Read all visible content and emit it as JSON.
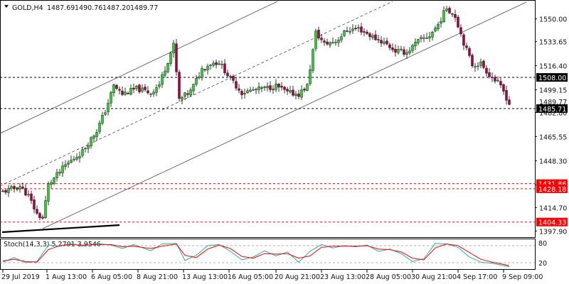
{
  "header": {
    "symbol": "GOLD,H4",
    "open": "1487.69",
    "high": "1490.76",
    "low": "1487.20",
    "close": "1489.77"
  },
  "stoch": {
    "label": "Stoch(14,3,3) 5.2701 3.9546",
    "levels": [
      "80",
      "20"
    ]
  },
  "colors": {
    "bull": "#32cd32",
    "bear": "#b0003a",
    "wick": "#000000",
    "channel": "#4a4a58",
    "hline_black": "#000000",
    "hline_red": "#ff0000",
    "stoch_main": "#20b2aa",
    "stoch_signal": "#ff0000"
  },
  "chart_data": {
    "type": "candlestick",
    "y_axis": {
      "range": [
        1393,
        1563
      ],
      "ticks": [
        "1550.00",
        "1533.65",
        "1516.40",
        "1499.15",
        "1482.80",
        "1465.55",
        "1448.30",
        "1431.05",
        "1414.70",
        "1397.90"
      ]
    },
    "x_axis": {
      "ticks": [
        "29 Jul 2019",
        "1 Aug 13:00",
        "6 Aug 05:00",
        "8 Aug 21:00",
        "13 Aug 13:00",
        "16 Aug 05:00",
        "20 Aug 21:00",
        "23 Aug 13:00",
        "28 Aug 05:00",
        "30 Aug 21:00",
        "4 Sep 17:00",
        "9 Sep 09:00"
      ]
    },
    "price_lines": [
      {
        "label": "1508.00",
        "value": 1508.0,
        "color": "black",
        "style": "dashed"
      },
      {
        "label": "1485.71",
        "value": 1485.71,
        "color": "black",
        "style": "dashed"
      },
      {
        "label": "1431.86",
        "value": 1431.86,
        "color": "red",
        "style": "dashed"
      },
      {
        "label": "1428.18",
        "value": 1428.18,
        "color": "red",
        "style": "dashed"
      },
      {
        "label": "1404.33",
        "value": 1404.33,
        "color": "red",
        "style": "dashed"
      }
    ],
    "current_price": {
      "label": "1489.77",
      "value": 1489.77
    },
    "keypoints": [
      [
        0,
        1426
      ],
      [
        6,
        1430
      ],
      [
        9,
        1423
      ],
      [
        12,
        1410
      ],
      [
        14,
        1407
      ],
      [
        16,
        1431
      ],
      [
        22,
        1445
      ],
      [
        28,
        1455
      ],
      [
        33,
        1470
      ],
      [
        36,
        1484
      ],
      [
        39,
        1502
      ],
      [
        42,
        1496
      ],
      [
        47,
        1500
      ],
      [
        52,
        1497
      ],
      [
        55,
        1503
      ],
      [
        58,
        1520
      ],
      [
        60,
        1531
      ],
      [
        62,
        1492
      ],
      [
        66,
        1498
      ],
      [
        70,
        1514
      ],
      [
        73,
        1518
      ],
      [
        76,
        1519
      ],
      [
        80,
        1507
      ],
      [
        84,
        1497
      ],
      [
        88,
        1499
      ],
      [
        92,
        1500
      ],
      [
        96,
        1502
      ],
      [
        100,
        1497
      ],
      [
        104,
        1496
      ],
      [
        107,
        1502
      ],
      [
        110,
        1540
      ],
      [
        113,
        1532
      ],
      [
        117,
        1534
      ],
      [
        121,
        1542
      ],
      [
        125,
        1543
      ],
      [
        130,
        1537
      ],
      [
        134,
        1533
      ],
      [
        138,
        1527
      ],
      [
        142,
        1526
      ],
      [
        146,
        1534
      ],
      [
        150,
        1538
      ],
      [
        153,
        1546
      ],
      [
        156,
        1558
      ],
      [
        159,
        1552
      ],
      [
        162,
        1533
      ],
      [
        165,
        1517
      ],
      [
        168,
        1518
      ],
      [
        171,
        1510
      ],
      [
        174,
        1504
      ],
      [
        176,
        1498
      ],
      [
        178,
        1489
      ]
    ],
    "stoch_main": [
      [
        0,
        22
      ],
      [
        4,
        38
      ],
      [
        8,
        20
      ],
      [
        12,
        24
      ],
      [
        16,
        82
      ],
      [
        20,
        78
      ],
      [
        24,
        88
      ],
      [
        28,
        78
      ],
      [
        33,
        88
      ],
      [
        38,
        82
      ],
      [
        42,
        70
      ],
      [
        46,
        84
      ],
      [
        52,
        62
      ],
      [
        56,
        86
      ],
      [
        61,
        88
      ],
      [
        64,
        28
      ],
      [
        68,
        46
      ],
      [
        72,
        80
      ],
      [
        76,
        84
      ],
      [
        80,
        60
      ],
      [
        84,
        30
      ],
      [
        88,
        40
      ],
      [
        92,
        62
      ],
      [
        96,
        44
      ],
      [
        100,
        58
      ],
      [
        104,
        22
      ],
      [
        108,
        60
      ],
      [
        112,
        84
      ],
      [
        116,
        72
      ],
      [
        120,
        80
      ],
      [
        124,
        76
      ],
      [
        128,
        82
      ],
      [
        132,
        60
      ],
      [
        136,
        68
      ],
      [
        140,
        52
      ],
      [
        144,
        24
      ],
      [
        148,
        34
      ],
      [
        152,
        88
      ],
      [
        156,
        86
      ],
      [
        160,
        74
      ],
      [
        164,
        40
      ],
      [
        168,
        22
      ],
      [
        172,
        18
      ],
      [
        176,
        10
      ],
      [
        178,
        6
      ]
    ],
    "stoch_signal": [
      [
        0,
        26
      ],
      [
        4,
        32
      ],
      [
        8,
        24
      ],
      [
        12,
        22
      ],
      [
        16,
        66
      ],
      [
        20,
        80
      ],
      [
        24,
        84
      ],
      [
        28,
        82
      ],
      [
        33,
        84
      ],
      [
        38,
        84
      ],
      [
        42,
        76
      ],
      [
        46,
        78
      ],
      [
        52,
        70
      ],
      [
        56,
        78
      ],
      [
        61,
        86
      ],
      [
        64,
        46
      ],
      [
        68,
        38
      ],
      [
        72,
        68
      ],
      [
        76,
        82
      ],
      [
        80,
        70
      ],
      [
        84,
        42
      ],
      [
        88,
        36
      ],
      [
        92,
        52
      ],
      [
        96,
        50
      ],
      [
        100,
        52
      ],
      [
        104,
        36
      ],
      [
        108,
        44
      ],
      [
        112,
        74
      ],
      [
        116,
        78
      ],
      [
        120,
        78
      ],
      [
        124,
        78
      ],
      [
        128,
        80
      ],
      [
        132,
        68
      ],
      [
        136,
        66
      ],
      [
        140,
        58
      ],
      [
        144,
        36
      ],
      [
        148,
        30
      ],
      [
        152,
        72
      ],
      [
        156,
        86
      ],
      [
        160,
        80
      ],
      [
        164,
        56
      ],
      [
        168,
        32
      ],
      [
        172,
        22
      ],
      [
        176,
        14
      ],
      [
        178,
        9
      ]
    ]
  }
}
